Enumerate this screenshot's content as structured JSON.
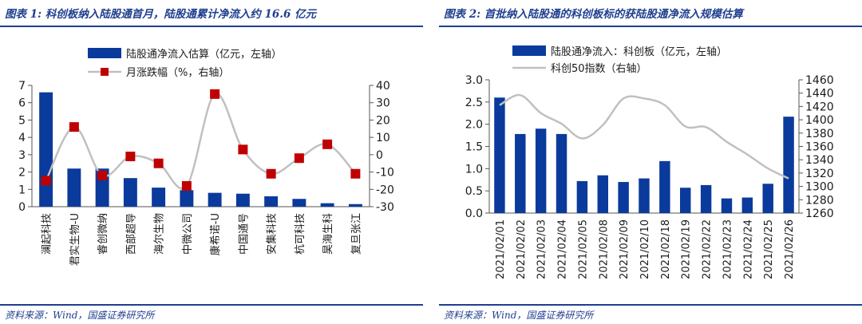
{
  "colors": {
    "bar": "#0a3a9c",
    "line": "#c0c0c0",
    "marker": "#c00000",
    "accent": "#1f3f8f"
  },
  "panels": [
    {
      "title": "图表 1:  科创板纳入陆股通首月，陆股通累计净流入约 16.6 亿元",
      "source": "资料来源：Wind，国盛证券研究所"
    },
    {
      "title": "图表 2:  首批纳入陆股通的科创板标的获陆股通净流入规模估算",
      "source": "资料来源：Wind，国盛证券研究所"
    }
  ],
  "chart_data": [
    {
      "type": "bar",
      "categories": [
        "澜起科技",
        "君实生物-U",
        "睿创微纳",
        "西部超导",
        "海尔生物",
        "中微公司",
        "康希诺-U",
        "中国通号",
        "安集科技",
        "杭可科技",
        "昊海生科",
        "复旦张江"
      ],
      "series": [
        {
          "name": "陆股通净流入估算（亿元，左轴）",
          "kind": "bar",
          "axis": "left",
          "values": [
            6.6,
            2.2,
            2.2,
            1.65,
            1.1,
            0.95,
            0.8,
            0.75,
            0.6,
            0.45,
            0.2,
            0.15
          ]
        },
        {
          "name": "月涨跌幅（%，右轴）",
          "kind": "line",
          "axis": "right",
          "values": [
            -15,
            16,
            -12,
            -1,
            -5,
            -18,
            35,
            3,
            -11,
            -2,
            6,
            -11
          ]
        }
      ],
      "y_left": {
        "min": 0,
        "max": 7,
        "ticks": [
          0,
          1,
          2,
          3,
          4,
          5,
          6,
          7
        ]
      },
      "y_right": {
        "min": -30,
        "max": 40,
        "ticks": [
          -30,
          -20,
          -10,
          0,
          10,
          20,
          30,
          40
        ]
      },
      "legend": "top"
    },
    {
      "type": "bar",
      "categories": [
        "2021/02/01",
        "2021/02/02",
        "2021/02/03",
        "2021/02/04",
        "2021/02/05",
        "2021/02/08",
        "2021/02/09",
        "2021/02/10",
        "2021/02/18",
        "2021/02/19",
        "2021/02/22",
        "2021/02/23",
        "2021/02/24",
        "2021/02/25",
        "2021/02/26"
      ],
      "series": [
        {
          "name": "陆股通净流入：科创板（亿元，左轴）",
          "kind": "bar",
          "axis": "left",
          "values": [
            2.6,
            1.78,
            1.9,
            1.78,
            0.72,
            0.85,
            0.7,
            0.78,
            1.17,
            0.57,
            0.63,
            0.33,
            0.35,
            0.66,
            2.17
          ]
        },
        {
          "name": "科创50指数（右轴）",
          "kind": "line",
          "axis": "right",
          "values": [
            1422,
            1437,
            1410,
            1394,
            1372,
            1392,
            1432,
            1432,
            1422,
            1390,
            1389,
            1367,
            1348,
            1327,
            1312
          ]
        }
      ],
      "y_left": {
        "min": 0,
        "max": 3,
        "ticks": [
          "0.0",
          "0.5",
          "1.0",
          "1.5",
          "2.0",
          "2.5",
          "3.0"
        ]
      },
      "y_right": {
        "min": 1260,
        "max": 1460,
        "ticks": [
          1260,
          1280,
          1300,
          1320,
          1340,
          1360,
          1380,
          1400,
          1420,
          1440,
          1460
        ]
      },
      "legend": "top"
    }
  ]
}
